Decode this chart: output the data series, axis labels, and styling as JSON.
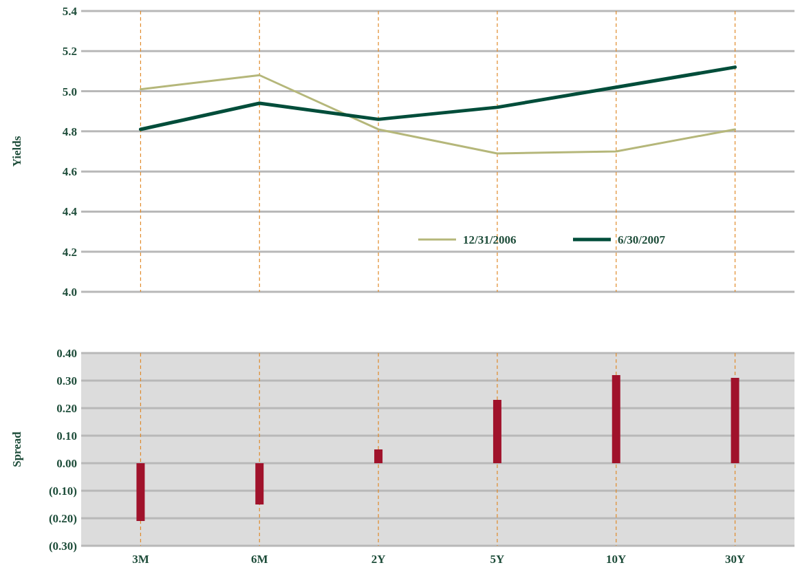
{
  "chart_data": [
    {
      "type": "line",
      "ylabel": "Yields",
      "categories": [
        null,
        null,
        null,
        null,
        null,
        null
      ],
      "ylim": [
        4.0,
        5.4
      ],
      "yticks": [
        {
          "value": 4.0,
          "label": "4.0"
        },
        4.2,
        4.4,
        4.6,
        4.8,
        {
          "value": 5.0,
          "label": "5.0"
        },
        5.2,
        5.4
      ],
      "grid": true,
      "legend": "right",
      "tick_labels": "y",
      "series": [
        {
          "name": "12/31/2006",
          "color": "#b5b77a",
          "values": [
            5.01,
            5.08,
            4.81,
            4.69,
            4.7,
            4.81
          ]
        },
        {
          "name": "6/30/2007",
          "color": "#004d3a",
          "values": [
            4.81,
            4.94,
            4.86,
            4.92,
            5.02,
            5.12
          ]
        }
      ]
    },
    {
      "type": "bar",
      "ylabel": "Spread",
      "categories": [
        "3M",
        "6M",
        "2Y",
        "5Y",
        "10Y",
        "30Y"
      ],
      "ylim": [
        -0.3,
        0.4
      ],
      "yticks": [
        {
          "value": -0.3,
          "label": "(0.30)"
        },
        {
          "value": -0.2,
          "label": "(0.20)"
        },
        {
          "value": -0.1,
          "label": "(0.10)"
        },
        {
          "value": 0,
          "label": "0.00"
        },
        {
          "value": 0.1,
          "label": "0.10"
        },
        {
          "value": 0.2,
          "label": "0.20"
        },
        {
          "value": 0.3,
          "label": "0.30"
        },
        {
          "value": 0.4,
          "label": "0.40"
        }
      ],
      "grid": true,
      "series": [
        {
          "color": "#a0122b",
          "values": [
            -0.21,
            -0.15,
            0.05,
            0.23,
            0.32,
            0.31
          ]
        }
      ]
    }
  ]
}
